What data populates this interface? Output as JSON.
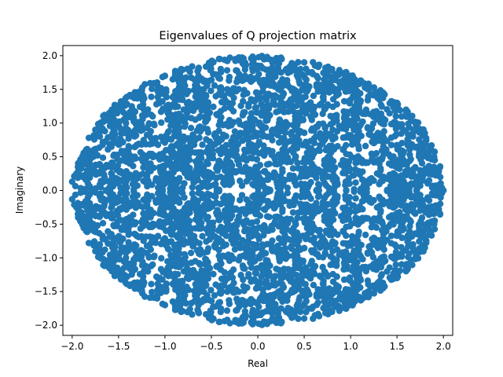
{
  "chart_data": {
    "type": "scatter",
    "title": "Eigenvalues of Q projection matrix",
    "xlabel": "Real",
    "ylabel": "Imaginary",
    "xlim": [
      -2.1,
      2.1
    ],
    "ylim": [
      -2.15,
      2.15
    ],
    "xticks": [
      -2.0,
      -1.5,
      -1.0,
      -0.5,
      0.0,
      0.5,
      1.0,
      1.5,
      2.0
    ],
    "xtick_labels": [
      "−2.0",
      "−1.5",
      "−1.0",
      "−0.5",
      "0.0",
      "0.5",
      "1.0",
      "1.5",
      "2.0"
    ],
    "yticks": [
      -2.0,
      -1.5,
      -1.0,
      -0.5,
      0.0,
      0.5,
      1.0,
      1.5,
      2.0
    ],
    "ytick_labels": [
      "−2.0",
      "−1.5",
      "−1.0",
      "−0.5",
      "0.0",
      "0.5",
      "1.0",
      "1.5",
      "2.0"
    ],
    "grid": false,
    "legend": "none",
    "marker_color": "#1f77b4",
    "distribution": "uniform disk of radius 2.0 centered at origin (eigenvalues, complex-conjugate symmetric about real axis)",
    "point_count_estimate": 4096,
    "points": [
      [
        -2.0,
        0.13
      ],
      [
        -2.0,
        -0.13
      ],
      [
        2.0,
        0.0
      ],
      [
        1.95,
        0.28
      ],
      [
        1.95,
        -0.28
      ],
      [
        1.9,
        0.5
      ],
      [
        1.9,
        -0.5
      ],
      [
        1.85,
        0.65
      ],
      [
        1.85,
        -0.65
      ],
      [
        1.8,
        0.85
      ],
      [
        1.8,
        -0.85
      ],
      [
        1.7,
        1.0
      ],
      [
        1.7,
        -1.0
      ],
      [
        1.6,
        1.15
      ],
      [
        1.6,
        -1.15
      ],
      [
        1.5,
        1.3
      ],
      [
        1.5,
        -1.3
      ],
      [
        1.35,
        1.45
      ],
      [
        1.35,
        -1.45
      ],
      [
        1.2,
        1.55
      ],
      [
        1.2,
        -1.55
      ],
      [
        1.0,
        1.7
      ],
      [
        1.0,
        -1.7
      ],
      [
        0.8,
        1.8
      ],
      [
        0.8,
        -1.8
      ],
      [
        0.5,
        1.9
      ],
      [
        0.5,
        -1.9
      ],
      [
        0.25,
        1.97
      ],
      [
        0.25,
        -1.97
      ],
      [
        0.1,
        1.98
      ],
      [
        0.1,
        -1.98
      ],
      [
        -0.3,
        1.97
      ],
      [
        -0.3,
        -1.97
      ],
      [
        -0.5,
        1.88
      ],
      [
        -0.5,
        -1.88
      ],
      [
        -0.75,
        1.8
      ],
      [
        -0.75,
        -1.8
      ],
      [
        -1.0,
        1.7
      ],
      [
        -1.0,
        -1.7
      ],
      [
        -1.25,
        1.5
      ],
      [
        -1.25,
        -1.5
      ],
      [
        -1.45,
        1.3
      ],
      [
        -1.45,
        -1.3
      ],
      [
        -1.6,
        1.15
      ],
      [
        -1.6,
        -1.15
      ],
      [
        -1.75,
        0.9
      ],
      [
        -1.75,
        -0.9
      ],
      [
        -1.85,
        0.6
      ],
      [
        -1.85,
        -0.6
      ],
      [
        -1.9,
        0.35
      ],
      [
        -1.9,
        -0.35
      ]
    ]
  }
}
